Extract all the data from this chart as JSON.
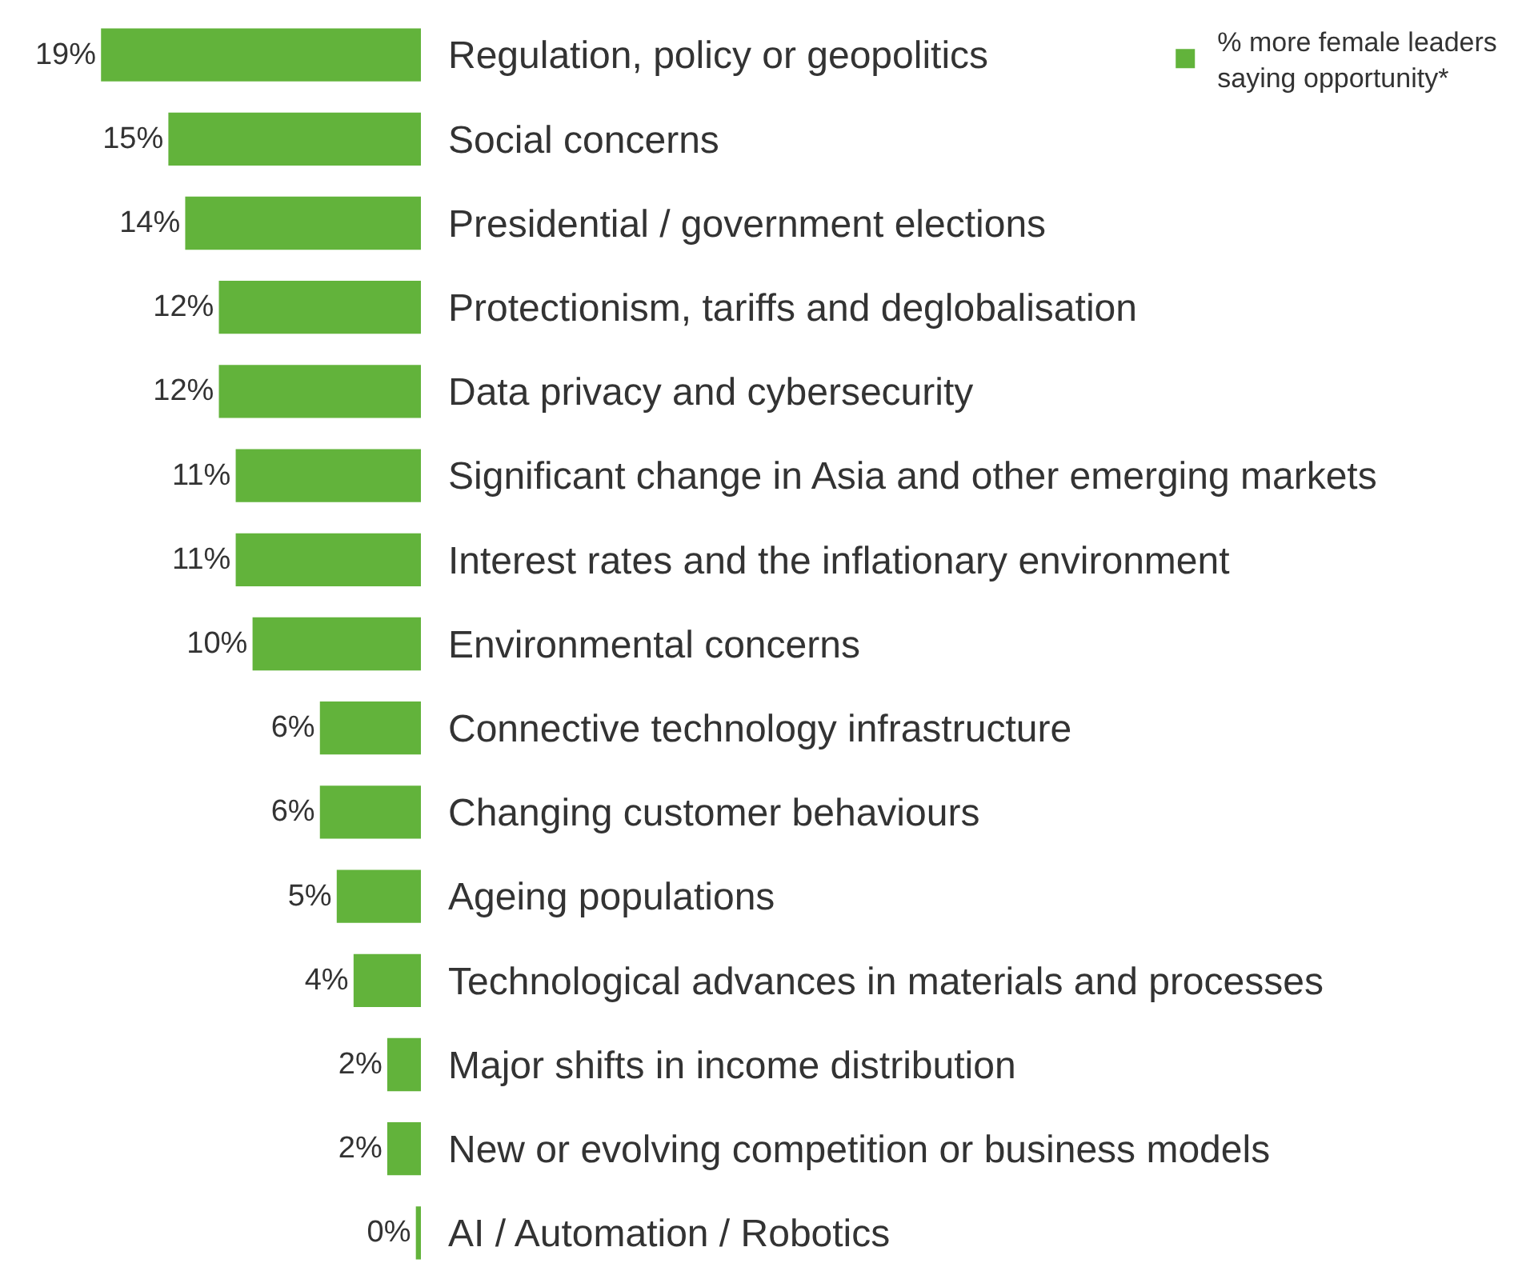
{
  "chart_data": {
    "type": "bar",
    "orientation": "horizontal",
    "categories": [
      "Regulation, policy or geopolitics",
      "Social concerns",
      "Presidential / government elections",
      "Protectionism, tariffs and deglobalisation",
      "Data privacy and cybersecurity",
      "Significant change in Asia and other emerging markets",
      "Interest rates and the inflationary environment",
      "Environmental concerns",
      "Connective technology infrastructure",
      "Changing customer behaviours",
      "Ageing populations",
      "Technological advances in materials and processes",
      "Major shifts in income distribution",
      "New or evolving competition or business models",
      "AI / Automation / Robotics"
    ],
    "series": [
      {
        "name": "% more female leaders saying opportunity*",
        "color": "#62b33b",
        "values": [
          19,
          15,
          14,
          12,
          12,
          11,
          11,
          10,
          6,
          6,
          5,
          4,
          2,
          2,
          0.3
        ],
        "value_labels": [
          "19%",
          "15%",
          "14%",
          "12%",
          "12%",
          "11%",
          "11%",
          "10%",
          "6%",
          "6%",
          "5%",
          "4%",
          "2%",
          "2%",
          "0%"
        ]
      }
    ],
    "xlim": [
      25,
      0
    ],
    "tick_labels": "y",
    "legend": "top right"
  }
}
